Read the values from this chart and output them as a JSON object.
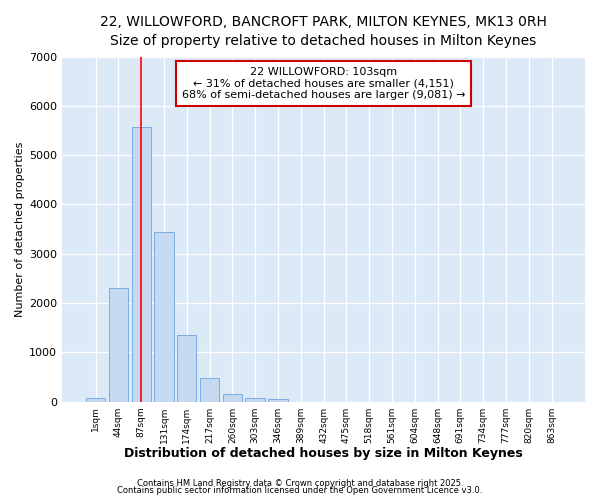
{
  "title_line1": "22, WILLOWFORD, BANCROFT PARK, MILTON KEYNES, MK13 0RH",
  "title_line2": "Size of property relative to detached houses in Milton Keynes",
  "xlabel": "Distribution of detached houses by size in Milton Keynes",
  "ylabel": "Number of detached properties",
  "bar_labels": [
    "1sqm",
    "44sqm",
    "87sqm",
    "131sqm",
    "174sqm",
    "217sqm",
    "260sqm",
    "303sqm",
    "346sqm",
    "389sqm",
    "432sqm",
    "475sqm",
    "518sqm",
    "561sqm",
    "604sqm",
    "648sqm",
    "691sqm",
    "734sqm",
    "777sqm",
    "820sqm",
    "863sqm"
  ],
  "bar_values": [
    75,
    2300,
    5580,
    3450,
    1350,
    480,
    160,
    75,
    50,
    0,
    0,
    0,
    0,
    0,
    0,
    0,
    0,
    0,
    0,
    0,
    0
  ],
  "bar_color": "#c5d9f0",
  "bar_edge_color": "#7aace0",
  "ylim": [
    0,
    7000
  ],
  "yticks": [
    0,
    1000,
    2000,
    3000,
    4000,
    5000,
    6000,
    7000
  ],
  "red_line_x": 2.0,
  "annotation_text": "22 WILLOWFORD: 103sqm\n← 31% of detached houses are smaller (4,151)\n68% of semi-detached houses are larger (9,081) →",
  "annotation_box_color": "#ffffff",
  "annotation_box_edge": "#cc0000",
  "footer_line1": "Contains HM Land Registry data © Crown copyright and database right 2025.",
  "footer_line2": "Contains public sector information licensed under the Open Government Licence v3.0.",
  "bg_color": "#dce9f7",
  "grid_color": "#ffffff",
  "fig_bg": "#ffffff",
  "title_fontsize": 10,
  "subtitle_fontsize": 9,
  "xlabel_fontsize": 9,
  "ylabel_fontsize": 8
}
